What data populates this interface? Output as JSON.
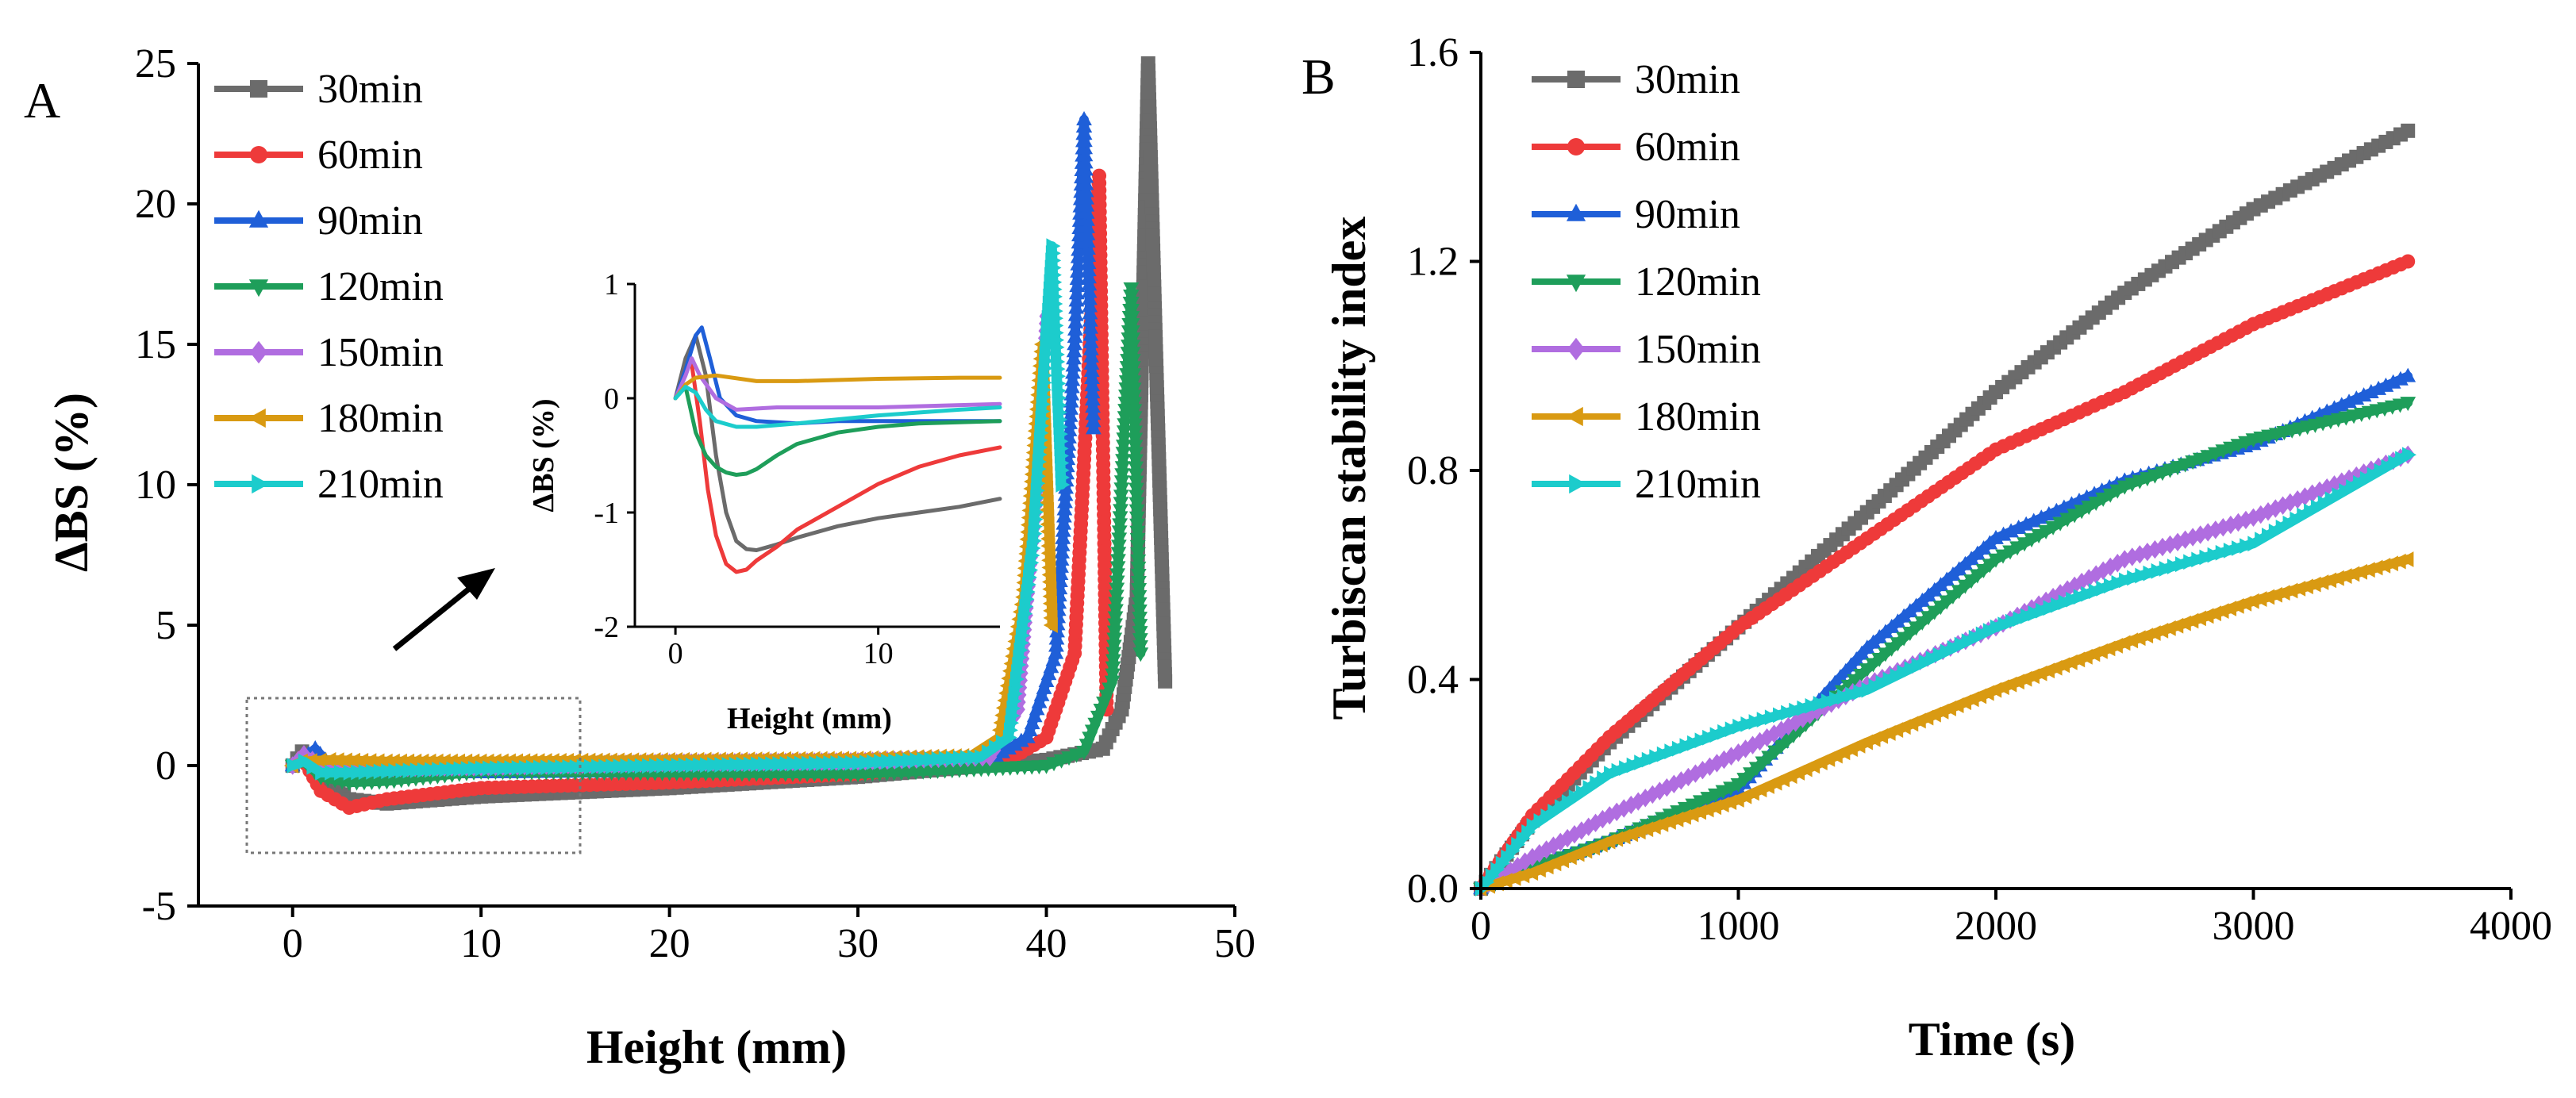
{
  "chart_data": [
    {
      "type": "line",
      "panel_label": "A",
      "xlabel": "Height (mm)",
      "ylabel": "ΔBS (%)",
      "xlim": [
        -5,
        50
      ],
      "ylim": [
        -5,
        25
      ],
      "xticks": [
        "0",
        "10",
        "20",
        "30",
        "40",
        "50"
      ],
      "yticks": [
        "-5",
        "0",
        "5",
        "10",
        "15",
        "20",
        "25"
      ],
      "legend_position": "top-left",
      "series": [
        {
          "name": "30min",
          "color": "#6b6b6b",
          "marker": "square",
          "x": [
            0,
            0.5,
            1,
            3,
            5,
            10,
            20,
            30,
            40,
            43,
            44,
            44.8,
            45.4,
            45.8,
            46.3
          ],
          "y": [
            0,
            0.5,
            0,
            -1.2,
            -1.35,
            -1.1,
            -0.8,
            -0.4,
            0.2,
            0.6,
            2,
            6,
            25,
            15,
            3
          ]
        },
        {
          "name": "60min",
          "color": "#ee3a3a",
          "marker": "circle",
          "x": [
            0,
            0.5,
            1.5,
            3,
            5,
            10,
            20,
            30,
            38,
            40,
            41.5,
            42.3,
            42.8,
            43.2
          ],
          "y": [
            0,
            0.3,
            -0.9,
            -1.5,
            -1.2,
            -0.8,
            -0.6,
            -0.3,
            0.2,
            1,
            4,
            15,
            21,
            2
          ]
        },
        {
          "name": "90min",
          "color": "#1f5fd8",
          "marker": "triangle-up",
          "x": [
            0,
            0.5,
            1.2,
            2,
            5,
            10,
            20,
            30,
            37,
            39,
            40.5,
            41.5,
            42,
            42.5
          ],
          "y": [
            0,
            0.2,
            0.6,
            0,
            -0.25,
            -0.25,
            -0.2,
            -0.1,
            0.2,
            1,
            4,
            15,
            23,
            12
          ]
        },
        {
          "name": "120min",
          "color": "#1e9e5a",
          "marker": "triangle-down",
          "x": [
            0,
            0.5,
            1.5,
            3,
            5,
            10,
            20,
            30,
            40,
            42,
            43.5,
            44.5,
            45
          ],
          "y": [
            0,
            0.2,
            -0.4,
            -0.6,
            -0.55,
            -0.2,
            -0.25,
            -0.3,
            0,
            0.5,
            3,
            17,
            4
          ]
        },
        {
          "name": "150min",
          "color": "#b06de0",
          "marker": "diamond",
          "x": [
            0,
            0.6,
            1.5,
            3,
            10,
            20,
            30,
            37,
            38.5,
            39.5,
            40
          ],
          "y": [
            0,
            0.4,
            0,
            -0.1,
            -0.05,
            0.1,
            0.15,
            0.3,
            2,
            10,
            16
          ]
        },
        {
          "name": "180min",
          "color": "#d99a12",
          "marker": "triangle-left",
          "x": [
            0,
            0.5,
            2,
            5,
            10,
            20,
            30,
            36,
            37.5,
            38.8,
            39.8,
            40.3
          ],
          "y": [
            0,
            0.15,
            0.2,
            0.15,
            0.15,
            0.2,
            0.25,
            0.35,
            1,
            6,
            15,
            5
          ]
        },
        {
          "name": "210min",
          "color": "#1ccccc",
          "marker": "triangle-right",
          "x": [
            0,
            0.6,
            1.5,
            3,
            5,
            10,
            20,
            30,
            36.5,
            38,
            39.3,
            40.3,
            40.8
          ],
          "y": [
            0,
            0.15,
            -0.25,
            -0.25,
            -0.2,
            -0.1,
            0,
            0.1,
            0.3,
            1,
            8,
            18.5,
            10
          ]
        }
      ]
    },
    {
      "type": "line",
      "panel_label": "A-inset",
      "xlabel": "Height (mm)",
      "ylabel": "ΔBS (%)",
      "xlim": [
        -2,
        16
      ],
      "ylim": [
        -2,
        1
      ],
      "xticks": [
        "0",
        "10"
      ],
      "yticks": [
        "-2",
        "-1",
        "0",
        "1"
      ],
      "series": [
        {
          "name": "30min",
          "color": "#6b6b6b",
          "x": [
            0,
            0.5,
            1,
            1.5,
            2,
            2.5,
            3,
            3.5,
            4,
            5,
            6,
            8,
            10,
            12,
            14,
            16
          ],
          "y": [
            0,
            0.35,
            0.55,
            0.2,
            -0.5,
            -1.0,
            -1.25,
            -1.32,
            -1.33,
            -1.28,
            -1.22,
            -1.12,
            -1.05,
            -1.0,
            -0.95,
            -0.88
          ]
        },
        {
          "name": "60min",
          "color": "#ee3a3a",
          "x": [
            0,
            0.5,
            0.8,
            1.2,
            1.6,
            2,
            2.5,
            3,
            3.5,
            4,
            5,
            6,
            8,
            10,
            12,
            14,
            16
          ],
          "y": [
            0,
            0.25,
            0.3,
            -0.2,
            -0.8,
            -1.2,
            -1.45,
            -1.52,
            -1.5,
            -1.42,
            -1.3,
            -1.15,
            -0.95,
            -0.75,
            -0.6,
            -0.5,
            -0.43
          ]
        },
        {
          "name": "90min",
          "color": "#1f5fd8",
          "x": [
            0,
            0.5,
            1,
            1.3,
            1.7,
            2.2,
            3,
            4,
            6,
            8,
            10,
            12,
            16
          ],
          "y": [
            0,
            0.25,
            0.55,
            0.62,
            0.35,
            0,
            -0.15,
            -0.2,
            -0.22,
            -0.2,
            -0.2,
            -0.2,
            -0.2
          ]
        },
        {
          "name": "120min",
          "color": "#1e9e5a",
          "x": [
            0,
            0.5,
            1,
            1.5,
            2,
            2.5,
            3,
            3.5,
            4,
            5,
            6,
            8,
            10,
            12,
            16
          ],
          "y": [
            0,
            0.1,
            -0.3,
            -0.5,
            -0.6,
            -0.65,
            -0.67,
            -0.66,
            -0.62,
            -0.5,
            -0.4,
            -0.3,
            -0.25,
            -0.22,
            -0.2
          ]
        },
        {
          "name": "150min",
          "color": "#b06de0",
          "x": [
            0,
            0.5,
            0.8,
            1.2,
            2,
            3,
            5,
            10,
            16
          ],
          "y": [
            0,
            0.2,
            0.35,
            0.2,
            0,
            -0.1,
            -0.08,
            -0.08,
            -0.05
          ]
        },
        {
          "name": "180min",
          "color": "#d99a12",
          "x": [
            0,
            0.5,
            1,
            2,
            4,
            6,
            10,
            14,
            16
          ],
          "y": [
            0,
            0.12,
            0.18,
            0.2,
            0.15,
            0.15,
            0.17,
            0.18,
            0.18
          ]
        },
        {
          "name": "210min",
          "color": "#1ccccc",
          "x": [
            0,
            0.5,
            1,
            1.5,
            2,
            3,
            4,
            6,
            10,
            14,
            16
          ],
          "y": [
            0,
            0.1,
            0.05,
            -0.1,
            -0.2,
            -0.25,
            -0.25,
            -0.22,
            -0.15,
            -0.1,
            -0.08
          ]
        }
      ]
    },
    {
      "type": "line",
      "panel_label": "B",
      "xlabel": "Time (s)",
      "ylabel": "Turbiscan stability index",
      "xlim": [
        0,
        4000
      ],
      "ylim": [
        0,
        1.6
      ],
      "xticks": [
        "0",
        "1000",
        "2000",
        "3000",
        "4000"
      ],
      "yticks": [
        "0.0",
        "0.4",
        "0.8",
        "1.2",
        "1.6"
      ],
      "legend_position": "top-left",
      "series": [
        {
          "name": "30min",
          "color": "#6b6b6b",
          "marker": "square",
          "x": [
            0,
            200,
            500,
            1000,
            1500,
            2000,
            2500,
            3000,
            3600
          ],
          "y": [
            0,
            0.13,
            0.28,
            0.5,
            0.72,
            0.95,
            1.14,
            1.3,
            1.45
          ]
        },
        {
          "name": "60min",
          "color": "#ee3a3a",
          "marker": "circle",
          "x": [
            0,
            200,
            500,
            1000,
            1500,
            2000,
            2500,
            3000,
            3600
          ],
          "y": [
            0,
            0.14,
            0.29,
            0.5,
            0.67,
            0.84,
            0.95,
            1.08,
            1.2
          ]
        },
        {
          "name": "90min",
          "color": "#1f5fd8",
          "marker": "triangle-up",
          "x": [
            0,
            200,
            500,
            1000,
            1500,
            2000,
            2500,
            3000,
            3600
          ],
          "y": [
            0,
            0.04,
            0.09,
            0.19,
            0.46,
            0.67,
            0.78,
            0.85,
            0.98
          ]
        },
        {
          "name": "120min",
          "color": "#1e9e5a",
          "marker": "triangle-down",
          "x": [
            0,
            200,
            500,
            1000,
            1500,
            2000,
            2500,
            3000,
            3600
          ],
          "y": [
            0,
            0.04,
            0.09,
            0.2,
            0.42,
            0.63,
            0.77,
            0.86,
            0.93
          ]
        },
        {
          "name": "150min",
          "color": "#b06de0",
          "marker": "diamond",
          "x": [
            0,
            200,
            500,
            1000,
            1500,
            2000,
            2500,
            3000,
            3600
          ],
          "y": [
            0,
            0.06,
            0.14,
            0.26,
            0.39,
            0.5,
            0.63,
            0.71,
            0.83
          ]
        },
        {
          "name": "180min",
          "color": "#d99a12",
          "marker": "triangle-left",
          "x": [
            0,
            200,
            500,
            1000,
            1500,
            2000,
            2500,
            3000,
            3600
          ],
          "y": [
            0,
            0.03,
            0.09,
            0.17,
            0.28,
            0.38,
            0.47,
            0.55,
            0.63
          ]
        },
        {
          "name": "210min",
          "color": "#1ccccc",
          "marker": "triangle-right",
          "x": [
            0,
            200,
            500,
            1000,
            1500,
            2000,
            2500,
            3000,
            3600
          ],
          "y": [
            0,
            0.12,
            0.22,
            0.31,
            0.38,
            0.5,
            0.59,
            0.66,
            0.83
          ]
        }
      ]
    }
  ]
}
